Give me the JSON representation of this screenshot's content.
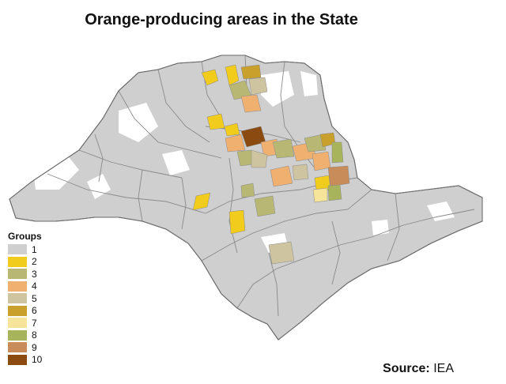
{
  "title": "Orange-producing areas in the State",
  "legend": {
    "title": "Groups",
    "items": [
      {
        "label": "1",
        "color": "#cfcfcf"
      },
      {
        "label": "2",
        "color": "#f2cc1c"
      },
      {
        "label": "3",
        "color": "#b8b874"
      },
      {
        "label": "4",
        "color": "#f0b070"
      },
      {
        "label": "5",
        "color": "#cfc4a0"
      },
      {
        "label": "6",
        "color": "#c9a02c"
      },
      {
        "label": "7",
        "color": "#f5e49a"
      },
      {
        "label": "8",
        "color": "#a8b45c"
      },
      {
        "label": "9",
        "color": "#c88c5a"
      },
      {
        "label": "10",
        "color": "#8a4a10"
      }
    ]
  },
  "source": {
    "label": "Source:",
    "value": "IEA"
  }
}
